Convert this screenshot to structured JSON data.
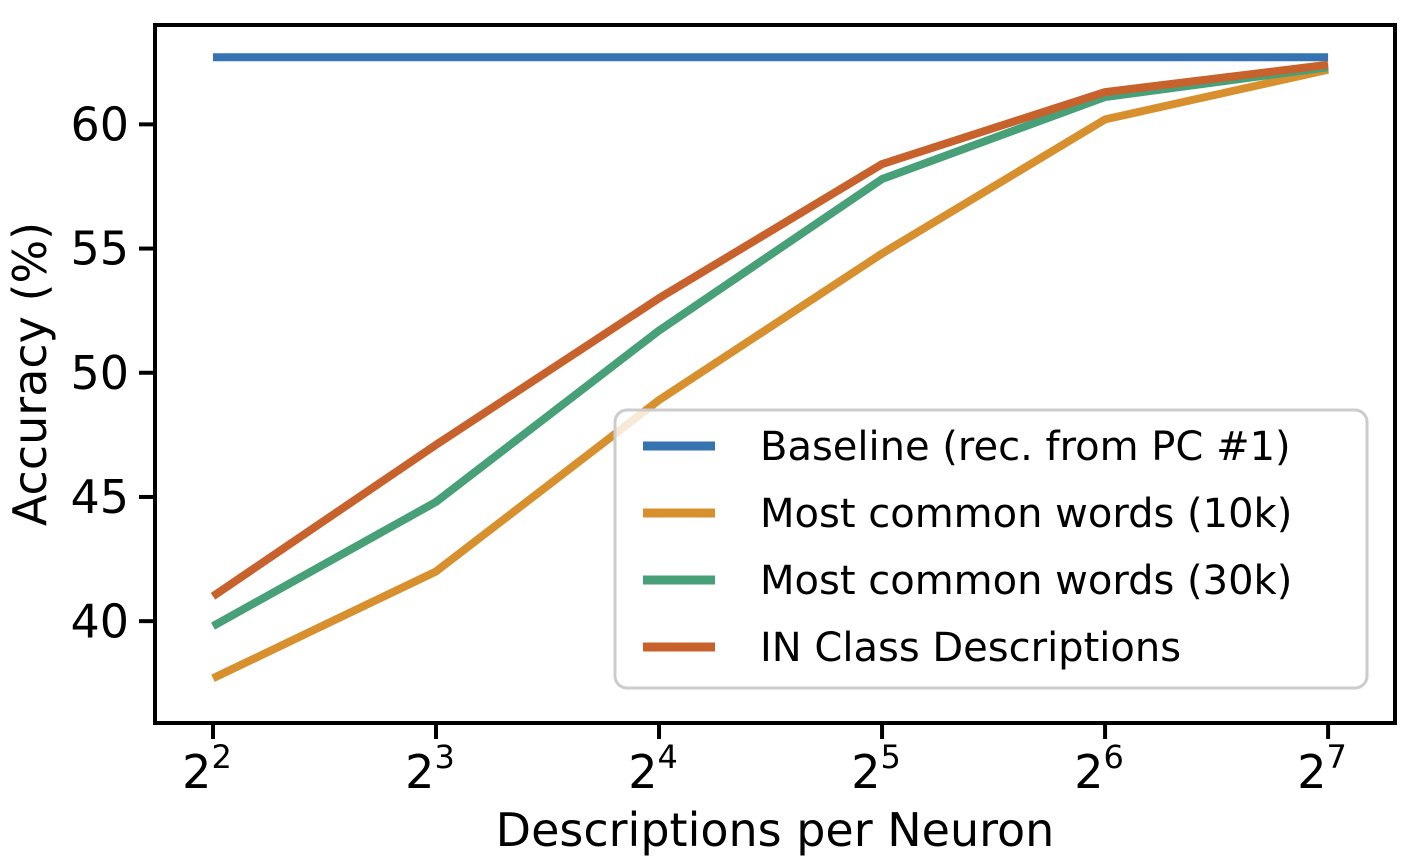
{
  "chart_data": {
    "type": "line",
    "title": "",
    "xlabel": "Descriptions per Neuron",
    "ylabel": "Accuracy (%)",
    "x_scale": "log2",
    "x_tick_base": "2",
    "x_tick_exponents": [
      2,
      3,
      4,
      5,
      6,
      7
    ],
    "x_values": [
      4,
      8,
      16,
      32,
      64,
      128
    ],
    "xlim_exponents": [
      1.74,
      7.3
    ],
    "y_ticks": [
      40,
      45,
      50,
      55,
      60
    ],
    "ylim": [
      35.9,
      64.0
    ],
    "grid": false,
    "legend_position": "lower-right-inside",
    "axis_color": "#000000",
    "legend_border_color": "#cccccc",
    "series": [
      {
        "name": "Baseline (rec. from PC #1)",
        "color": "#3573b1",
        "values": [
          62.7,
          62.7,
          62.7,
          62.7,
          62.7,
          62.7
        ]
      },
      {
        "name": "Most common words (10k)",
        "color": "#d8902f",
        "values": [
          37.7,
          42.0,
          48.9,
          54.8,
          60.2,
          62.2
        ]
      },
      {
        "name": "Most common words (30k)",
        "color": "#47a077",
        "values": [
          39.8,
          44.8,
          51.7,
          57.8,
          61.1,
          62.3
        ]
      },
      {
        "name": "IN Class Descriptions",
        "color": "#c8622c",
        "values": [
          41.0,
          47.1,
          53.0,
          58.4,
          61.3,
          62.4
        ]
      }
    ]
  }
}
